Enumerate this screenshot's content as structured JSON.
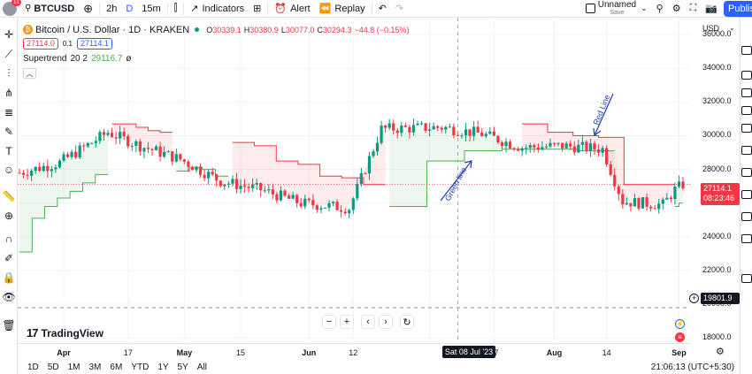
{
  "header": {
    "notifications": "11",
    "symbol": "BTCUSD",
    "interval_primary": "2h",
    "interval_d": "D",
    "interval_secondary": "15m",
    "indicators_label": "Indicators",
    "alert_label": "Alert",
    "replay_label": "Replay",
    "layout_name": "Unnamed",
    "save_label": "Save",
    "publish_label": "Publis"
  },
  "legend": {
    "title": "Bitcoin / U.S. Dollar · 1D · KRAKEN",
    "o_label": "O",
    "o_value": "30339.1",
    "h_label": "H",
    "h_value": "30380.9",
    "l_label": "L",
    "l_value": "30077.0",
    "c_label": "C",
    "c_value": "30294.3",
    "change": "−44.8 (−0.15%)",
    "sell_price": "27114.0",
    "spread": "0.1",
    "buy_price": "27114.1",
    "indicator_name": "Supertrend",
    "indicator_params": "20 2",
    "indicator_value": "29116.7",
    "indicator_icon": "ø"
  },
  "price_scale": {
    "currency": "USD",
    "labels": [
      "36000.0",
      "34000.0",
      "32000.0",
      "30000.0",
      "28000.0",
      "26000.0",
      "24000.0",
      "22000.0",
      "20000.0",
      "18000.0"
    ],
    "last_price": "27114.1",
    "countdown": "08:23:46",
    "level_line": "19801.9"
  },
  "time_axis": {
    "labels": [
      "Apr",
      "17",
      "May",
      "15",
      "Jun",
      "12",
      "Jul",
      "17",
      "Aug",
      "14",
      "Sep"
    ],
    "crosshair": "Sat 08 Jul '23"
  },
  "annotations": {
    "green": "Green line",
    "red": "Red Line"
  },
  "bottom": {
    "ranges": [
      "1D",
      "5D",
      "1M",
      "3M",
      "6M",
      "YTD",
      "1Y",
      "5Y",
      "All"
    ],
    "clock": "21:06:13 (UTC+5:30)"
  },
  "logo": "TradingView",
  "colors": {
    "up": "#089981",
    "down": "#f23645",
    "supertrend_up": "#4caf50",
    "supertrend_down": "#f23645",
    "annotation": "#1e3ea8",
    "accent": "#2962ff"
  },
  "chart_data": {
    "type": "candlestick",
    "x_start": "2023-03-21",
    "x_end": "2023-09-02",
    "ylim": [
      17700,
      37000
    ],
    "supertrend_segments": [
      {
        "trend": "up",
        "from": "2023-03-21",
        "to": "2023-04-12",
        "values": [
          23100,
          25100,
          25800,
          26300,
          26700,
          27200,
          27700
        ]
      },
      {
        "trend": "down",
        "from": "2023-04-13",
        "to": "2023-04-28",
        "values": [
          30700,
          30700,
          30500,
          30300,
          30200
        ]
      },
      {
        "trend": "up",
        "from": "2023-04-29",
        "to": "2023-05-12",
        "values": [
          27900,
          28100,
          28000,
          27600
        ]
      },
      {
        "trend": "down",
        "from": "2023-05-13",
        "to": "2023-06-20",
        "values": [
          29600,
          29400,
          28500,
          28300,
          27600,
          27500,
          27100
        ]
      },
      {
        "trend": "up",
        "from": "2023-06-21",
        "to": "2023-08-16",
        "values": [
          25800,
          28500,
          29100,
          29200,
          29200,
          29100
        ]
      },
      {
        "trend": "down",
        "from": "2023-07-24",
        "to": "2023-08-31",
        "values": [
          30700,
          30200,
          30000,
          29900,
          27100,
          27100
        ]
      },
      {
        "trend": "up",
        "from": "2023-08-31",
        "to": "2023-09-02",
        "values": [
          25800,
          26000
        ]
      }
    ]
  }
}
